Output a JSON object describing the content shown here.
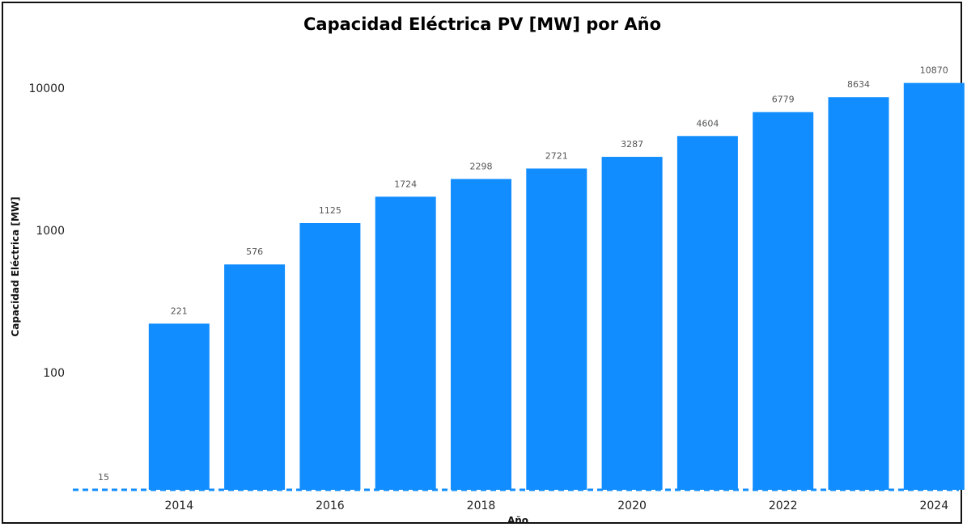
{
  "chart_data": {
    "type": "bar",
    "title": "Capacidad Eléctrica PV [MW] por Año",
    "xlabel": "Año",
    "ylabel": "Capacidad Eléctrica [MW]",
    "yscale": "log",
    "ylim": [
      15,
      12000
    ],
    "yticks": [
      100,
      1000,
      10000
    ],
    "xticks": [
      2014,
      2016,
      2018,
      2020,
      2022,
      2024
    ],
    "categories": [
      2013,
      2014,
      2015,
      2016,
      2017,
      2018,
      2019,
      2020,
      2021,
      2022,
      2023,
      2024
    ],
    "values": [
      15,
      221,
      576,
      1125,
      1724,
      2298,
      2721,
      3287,
      4604,
      6779,
      8634,
      10870
    ],
    "bar_color": "#118DFF",
    "grid": false,
    "legend": "none"
  }
}
